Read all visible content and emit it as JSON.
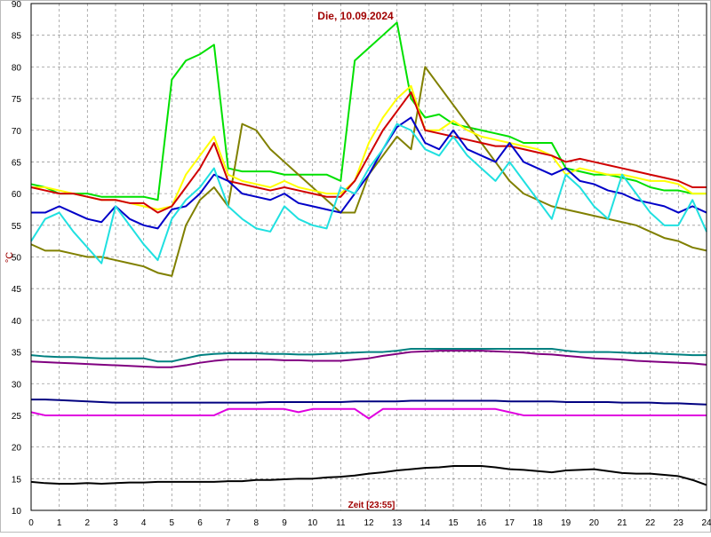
{
  "chart_data": {
    "type": "line",
    "title": "Die, 10.09.2024",
    "x_label": "Zeit [23:55]",
    "y_label": "°C",
    "grid": true,
    "xlim": [
      0,
      24
    ],
    "xticks": [
      0,
      1,
      2,
      3,
      4,
      5,
      6,
      7,
      8,
      9,
      10,
      11,
      12,
      13,
      14,
      15,
      16,
      17,
      18,
      19,
      20,
      21,
      22,
      23,
      24
    ],
    "ylim": [
      10,
      90
    ],
    "yticks": [
      10,
      15,
      20,
      25,
      30,
      35,
      40,
      45,
      50,
      55,
      60,
      65,
      70,
      75,
      80,
      85,
      90
    ],
    "x": [
      0,
      0.5,
      1,
      1.5,
      2,
      2.5,
      3,
      3.5,
      4,
      4.5,
      5,
      5.5,
      6,
      6.5,
      7,
      7.5,
      8,
      8.5,
      9,
      9.5,
      10,
      10.5,
      11,
      11.5,
      12,
      12.5,
      13,
      13.5,
      14,
      14.5,
      15,
      15.5,
      16,
      16.5,
      17,
      17.5,
      18,
      18.5,
      19,
      19.5,
      20,
      20.5,
      21,
      21.5,
      22,
      22.5,
      23,
      23.5,
      24
    ],
    "series": [
      {
        "color": "#00e000",
        "values": [
          61.5,
          61,
          60,
          60,
          60,
          59.5,
          59.5,
          59.5,
          59.5,
          59,
          78,
          81,
          82,
          83.5,
          64,
          63.5,
          63.5,
          63.5,
          63,
          63,
          63,
          63,
          62,
          81,
          83,
          85,
          87,
          75,
          72,
          72.5,
          71,
          70.5,
          70,
          69.5,
          69,
          68,
          68,
          68,
          64,
          63.5,
          63,
          63,
          62.5,
          62,
          61,
          60.5,
          60.5,
          60,
          60
        ]
      },
      {
        "color": "#808000",
        "values": [
          52,
          51,
          51,
          50.5,
          50,
          50,
          49.5,
          49,
          48.5,
          47.5,
          47,
          55,
          59,
          61,
          58,
          71,
          70,
          67,
          65,
          63,
          61,
          59,
          57,
          57,
          63,
          66,
          69,
          67,
          80,
          77,
          74,
          71,
          68,
          65,
          62,
          60,
          59,
          58,
          57.5,
          57,
          56.5,
          56,
          55.5,
          55,
          54,
          53,
          52.5,
          51.5,
          51
        ]
      },
      {
        "color": "#ffff00",
        "values": [
          61,
          61,
          60.5,
          60,
          59.5,
          59,
          59,
          58.5,
          58,
          57.5,
          58,
          63,
          66,
          69,
          63,
          62,
          61.5,
          61,
          62,
          61,
          60.5,
          60,
          60,
          62,
          68,
          72,
          75,
          77,
          70,
          70,
          71.5,
          70,
          69,
          68.5,
          68,
          67.5,
          67,
          66,
          63,
          64,
          63.5,
          63,
          63,
          62.5,
          62,
          62,
          61.5,
          60,
          60
        ]
      },
      {
        "color": "#d00000",
        "values": [
          61,
          60.5,
          60,
          60,
          59.5,
          59,
          59,
          58.5,
          58.5,
          57,
          58,
          61,
          64,
          68,
          62,
          61.5,
          61,
          60.5,
          61,
          60.5,
          60,
          59.5,
          59.5,
          62,
          66,
          70,
          73,
          76,
          70,
          69.5,
          69,
          68.5,
          68,
          67.5,
          67.5,
          67,
          66.5,
          66,
          65,
          65.5,
          65,
          64.5,
          64,
          63.5,
          63,
          62.5,
          62,
          61,
          61
        ]
      },
      {
        "color": "#0000c8",
        "values": [
          57,
          57,
          58,
          57,
          56,
          55.5,
          58,
          56,
          55,
          54.5,
          57.5,
          58,
          60,
          63,
          62,
          60,
          59.5,
          59,
          60,
          58.5,
          58,
          57.5,
          57,
          60,
          63,
          67,
          70.5,
          72,
          68,
          67,
          70,
          67,
          66,
          65,
          68,
          65,
          64,
          63,
          64,
          62,
          61.5,
          60.5,
          60,
          59,
          58.5,
          58,
          57,
          58,
          57
        ]
      },
      {
        "color": "#20e0e0",
        "values": [
          52.5,
          56,
          57,
          54,
          51.5,
          49,
          58,
          55,
          52,
          49.5,
          56,
          59,
          61,
          64,
          58,
          56,
          54.5,
          54,
          58,
          56,
          55,
          54.5,
          61,
          60,
          64,
          67,
          71,
          70,
          67,
          66,
          69,
          66,
          64,
          62,
          65,
          62,
          59,
          56,
          63,
          61,
          58,
          56,
          63,
          60,
          57,
          55,
          55,
          59,
          54
        ]
      },
      {
        "color": "#008080",
        "values": [
          34.5,
          34.3,
          34.2,
          34.2,
          34.1,
          34,
          34,
          34,
          34,
          33.5,
          33.5,
          34,
          34.5,
          34.7,
          34.8,
          34.8,
          34.8,
          34.7,
          34.7,
          34.6,
          34.6,
          34.7,
          34.8,
          34.9,
          35,
          35,
          35.2,
          35.5,
          35.5,
          35.5,
          35.5,
          35.5,
          35.5,
          35.5,
          35.5,
          35.5,
          35.5,
          35.5,
          35.2,
          35,
          35,
          35,
          34.9,
          34.8,
          34.8,
          34.7,
          34.6,
          34.5,
          34.5
        ]
      },
      {
        "color": "#800080",
        "values": [
          33.5,
          33.4,
          33.3,
          33.2,
          33.1,
          33,
          32.9,
          32.8,
          32.7,
          32.6,
          32.6,
          32.9,
          33.3,
          33.6,
          33.8,
          33.8,
          33.8,
          33.8,
          33.7,
          33.7,
          33.6,
          33.6,
          33.6,
          33.8,
          34,
          34.4,
          34.7,
          35,
          35.1,
          35.2,
          35.2,
          35.2,
          35.2,
          35.1,
          35,
          34.9,
          34.7,
          34.6,
          34.4,
          34.2,
          34,
          33.9,
          33.8,
          33.6,
          33.5,
          33.4,
          33.3,
          33.2,
          33
        ]
      },
      {
        "color": "#000080",
        "values": [
          27.5,
          27.5,
          27.4,
          27.3,
          27.2,
          27.1,
          27,
          27,
          27,
          27,
          27,
          27,
          27,
          27,
          27,
          27,
          27,
          27.1,
          27.1,
          27.1,
          27.1,
          27.1,
          27.1,
          27.2,
          27.2,
          27.2,
          27.2,
          27.3,
          27.3,
          27.3,
          27.3,
          27.3,
          27.3,
          27.3,
          27.2,
          27.2,
          27.2,
          27.2,
          27.1,
          27.1,
          27.1,
          27.1,
          27,
          27,
          27,
          26.9,
          26.9,
          26.8,
          26.7
        ]
      },
      {
        "color": "#e000e0",
        "values": [
          25.5,
          25,
          25,
          25,
          25,
          25,
          25,
          25,
          25,
          25,
          25,
          25,
          25,
          25,
          26,
          26,
          26,
          26,
          26,
          25.5,
          26,
          26,
          26,
          26,
          24.5,
          26,
          26,
          26,
          26,
          26,
          26,
          26,
          26,
          26,
          25.5,
          25,
          25,
          25,
          25,
          25,
          25,
          25,
          25,
          25,
          25,
          25,
          25,
          25,
          25
        ]
      },
      {
        "color": "#000000",
        "values": [
          14.5,
          14.3,
          14.2,
          14.2,
          14.3,
          14.2,
          14.3,
          14.4,
          14.4,
          14.5,
          14.5,
          14.5,
          14.5,
          14.5,
          14.6,
          14.6,
          14.8,
          14.8,
          14.9,
          15,
          15,
          15.2,
          15.3,
          15.5,
          15.8,
          16,
          16.3,
          16.5,
          16.7,
          16.8,
          17,
          17,
          17,
          16.8,
          16.5,
          16.4,
          16.2,
          16,
          16.3,
          16.4,
          16.5,
          16.2,
          15.9,
          15.8,
          15.8,
          15.6,
          15.4,
          14.8,
          14
        ]
      }
    ]
  }
}
